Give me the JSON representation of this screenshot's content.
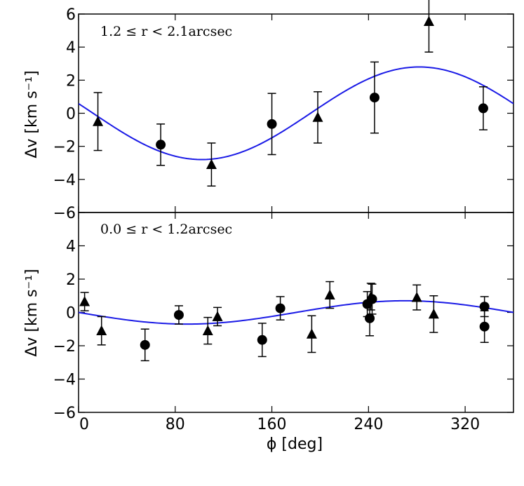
{
  "chart_data": [
    {
      "type": "scatter",
      "panel": "top",
      "annotation": "1.2 ≤ r < 2.1arcsec",
      "ylabel": "Δv [km s⁻¹]",
      "xlim": [
        0,
        360
      ],
      "ylim": [
        -6,
        6
      ],
      "yticks": [
        -6,
        -4,
        -2,
        0,
        2,
        4,
        6
      ],
      "ytick_labels": [
        "−6",
        "−4",
        "−2",
        "0",
        "2",
        "4",
        "6"
      ],
      "series": [
        {
          "name": "circles",
          "marker": "circle",
          "points": [
            {
              "x": 68,
              "y": -1.9,
              "err": 1.25
            },
            {
              "x": 160,
              "y": -0.65,
              "err": 1.85
            },
            {
              "x": 245,
              "y": 0.95,
              "err": 2.15
            },
            {
              "x": 335,
              "y": 0.3,
              "err": 1.3
            }
          ]
        },
        {
          "name": "triangles",
          "marker": "triangle",
          "points": [
            {
              "x": 16,
              "y": -0.5,
              "err": 1.75
            },
            {
              "x": 110,
              "y": -3.1,
              "err": 1.3
            },
            {
              "x": 198,
              "y": -0.25,
              "err": 1.55
            },
            {
              "x": 290,
              "y": 5.55,
              "err": 1.85
            }
          ]
        },
        {
          "name": "sinusoid fit",
          "marker": "line",
          "amplitude": 2.8,
          "phase_peak_deg": 282
        }
      ]
    },
    {
      "type": "scatter",
      "panel": "bottom",
      "annotation": "0.0 ≤ r < 1.2arcsec",
      "ylabel": "Δv [km s⁻¹]",
      "xlabel": "ϕ [deg]",
      "xlim": [
        0,
        360
      ],
      "ylim": [
        -6,
        6
      ],
      "xticks": [
        0,
        80,
        160,
        240,
        320
      ],
      "xtick_labels": [
        "0",
        "80",
        "160",
        "240",
        "320"
      ],
      "yticks": [
        -6,
        -4,
        -2,
        0,
        2,
        4
      ],
      "ytick_labels": [
        "−6",
        "−4",
        "−2",
        "0",
        "2",
        "4"
      ],
      "series": [
        {
          "name": "circles",
          "marker": "circle",
          "points": [
            {
              "x": 55,
              "y": -1.95,
              "err": 0.95
            },
            {
              "x": 83,
              "y": -0.15,
              "err": 0.55
            },
            {
              "x": 152,
              "y": -1.65,
              "err": 1.0
            },
            {
              "x": 167,
              "y": 0.25,
              "err": 0.7
            },
            {
              "x": 239,
              "y": 0.5,
              "err": 0.75
            },
            {
              "x": 241,
              "y": -0.35,
              "err": 1.05
            },
            {
              "x": 243,
              "y": 0.8,
              "err": 0.9
            },
            {
              "x": 336,
              "y": 0.35,
              "err": 0.6
            },
            {
              "x": 336,
              "y": -0.85,
              "err": 0.95
            }
          ]
        },
        {
          "name": "triangles",
          "marker": "triangle",
          "points": [
            {
              "x": 5,
              "y": 0.65,
              "err": 0.55
            },
            {
              "x": 19,
              "y": -1.1,
              "err": 0.85
            },
            {
              "x": 107,
              "y": -1.1,
              "err": 0.8
            },
            {
              "x": 115,
              "y": -0.25,
              "err": 0.55
            },
            {
              "x": 193,
              "y": -1.3,
              "err": 1.1
            },
            {
              "x": 208,
              "y": 1.05,
              "err": 0.8
            },
            {
              "x": 242,
              "y": 0.95,
              "err": 0.8
            },
            {
              "x": 280,
              "y": 0.9,
              "err": 0.75
            },
            {
              "x": 294,
              "y": -0.1,
              "err": 1.1
            }
          ]
        },
        {
          "name": "sinusoid fit",
          "marker": "line",
          "amplitude": 0.7,
          "phase_peak_deg": 270
        }
      ]
    }
  ]
}
